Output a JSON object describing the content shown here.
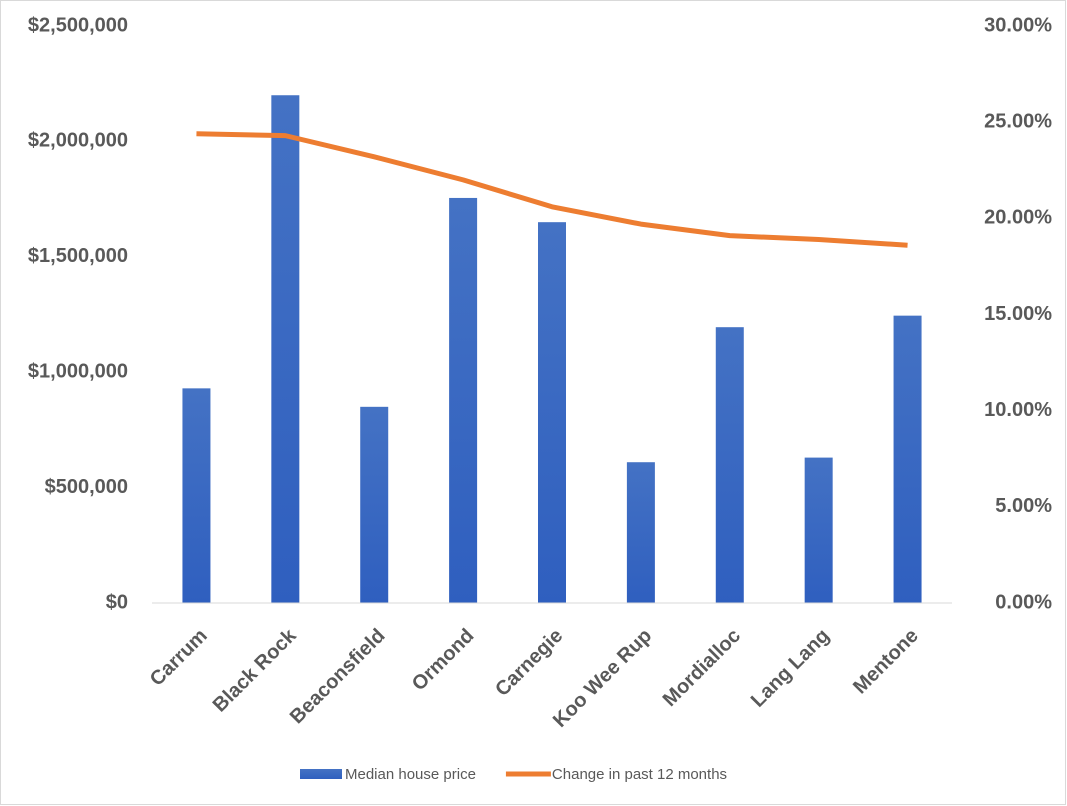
{
  "chart_data": {
    "type": "bar-line",
    "categories": [
      "Carrum",
      "Black Rock",
      "Beaconsfield",
      "Ormond",
      "Carnegie",
      "Koo Wee Rup",
      "Mordialloc",
      "Lang Lang",
      "Mentone"
    ],
    "series": [
      {
        "name": "Median house price",
        "type": "bar",
        "color": "#4472c4",
        "values": [
          930000,
          2200000,
          850000,
          1755000,
          1650000,
          610000,
          1195000,
          630000,
          1245000
        ]
      },
      {
        "name": "Change in past 12 months",
        "type": "line",
        "color": "#ed7d31",
        "axis": "y2",
        "values": [
          24.4,
          24.3,
          23.2,
          22.0,
          20.6,
          19.7,
          19.1,
          18.9,
          18.6
        ]
      }
    ],
    "ylim": [
      0,
      2500000
    ],
    "yticks": [
      {
        "value": 0,
        "label": "$0"
      },
      {
        "value": 500000,
        "label": "$500,000"
      },
      {
        "value": 1000000,
        "label": "$1,000,000"
      },
      {
        "value": 1500000,
        "label": "$1,500,000"
      },
      {
        "value": 2000000,
        "label": "$2,000,000"
      },
      {
        "value": 2500000,
        "label": "$2,500,000"
      }
    ],
    "y2lim": [
      0,
      30
    ],
    "y2ticks": [
      {
        "value": 0,
        "label": "0.00%"
      },
      {
        "value": 5,
        "label": "5.00%"
      },
      {
        "value": 10,
        "label": "10.00%"
      },
      {
        "value": 15,
        "label": "15.00%"
      },
      {
        "value": 20,
        "label": "20.00%"
      },
      {
        "value": 25,
        "label": "25.00%"
      },
      {
        "value": 30,
        "label": "30.00%"
      }
    ],
    "grid": false,
    "legend": "bottom"
  }
}
